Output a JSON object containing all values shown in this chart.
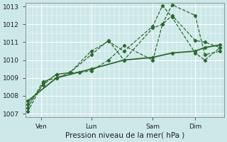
{
  "background_color": "#cce8e8",
  "plot_bg_color": "#cce8e8",
  "grid_color": "#ffffff",
  "line_color": "#2d6a2d",
  "xlabel": "Pression niveau de la mer( hPa )",
  "ylim": [
    1006.8,
    1013.2
  ],
  "yticks": [
    1007,
    1008,
    1009,
    1010,
    1011,
    1012,
    1013
  ],
  "xtick_labels": [
    "Ven",
    "Lun",
    "Sam",
    "Dim"
  ],
  "xtick_positions": [
    0.7,
    3.3,
    6.5,
    8.7
  ],
  "xlim": [
    -0.1,
    10.2
  ],
  "series": [
    {
      "x": [
        0.0,
        0.8,
        1.5,
        2.2,
        3.3,
        4.2,
        5.0,
        6.5,
        7.0,
        7.5,
        8.7,
        9.2,
        10.0
      ],
      "y": [
        1007.1,
        1008.7,
        1009.2,
        1009.3,
        1010.3,
        1011.1,
        1010.0,
        1011.8,
        1012.0,
        1012.5,
        1011.1,
        1011.0,
        1010.7
      ],
      "lw": 0.9,
      "ls": "--"
    },
    {
      "x": [
        0.0,
        0.8,
        1.5,
        2.2,
        3.3,
        4.2,
        5.0,
        6.5,
        7.0,
        7.5,
        8.7,
        9.2,
        10.0
      ],
      "y": [
        1007.3,
        1008.8,
        1009.0,
        1009.3,
        1010.5,
        1011.05,
        1010.5,
        1011.9,
        1013.05,
        1012.4,
        1010.4,
        1010.0,
        1010.7
      ],
      "lw": 0.9,
      "ls": "--"
    },
    {
      "x": [
        0.0,
        0.8,
        1.5,
        2.2,
        2.7,
        3.3,
        4.2,
        5.0,
        6.5,
        7.0,
        7.5,
        8.7,
        9.2,
        10.0
      ],
      "y": [
        1007.5,
        1008.6,
        1009.2,
        1009.3,
        1009.3,
        1009.4,
        1010.0,
        1010.8,
        1010.0,
        1012.0,
        1013.1,
        1012.5,
        1010.3,
        1010.5
      ],
      "lw": 0.9,
      "ls": "--"
    },
    {
      "x": [
        0.0,
        1.5,
        3.3,
        5.0,
        6.5,
        7.5,
        8.7,
        9.2,
        10.0
      ],
      "y": [
        1007.7,
        1009.0,
        1009.5,
        1010.0,
        1010.15,
        1010.4,
        1010.5,
        1010.7,
        1010.85
      ],
      "lw": 1.3,
      "ls": "-"
    }
  ]
}
